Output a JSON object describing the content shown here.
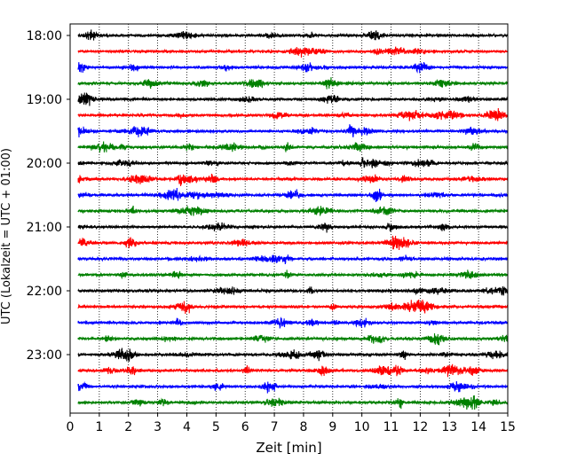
{
  "chart_data": {
    "type": "line",
    "title": "",
    "xlabel": "Zeit  [min]",
    "ylabel": "UTC (Lokalzeit = UTC + 01:00)",
    "xlim": [
      0,
      15
    ],
    "x_ticks": [
      0,
      1,
      2,
      3,
      4,
      5,
      6,
      7,
      8,
      9,
      10,
      11,
      12,
      13,
      14,
      15
    ],
    "x_tick_labels": [
      "0",
      "1",
      "2",
      "3",
      "4",
      "5",
      "6",
      "7",
      "8",
      "9",
      "10",
      "11",
      "12",
      "13",
      "14",
      "15"
    ],
    "y_tick_labels": [
      "18:00",
      "19:00",
      "20:00",
      "21:00",
      "22:00",
      "23:00"
    ],
    "grid": "vertical dotted",
    "legend": "none",
    "color_cycle": [
      "#000000",
      "#ff0000",
      "#0000ff",
      "#008000"
    ],
    "series": [
      {
        "start": "18:00",
        "color": "#000000"
      },
      {
        "start": "18:15",
        "color": "#ff0000"
      },
      {
        "start": "18:30",
        "color": "#0000ff"
      },
      {
        "start": "18:45",
        "color": "#008000"
      },
      {
        "start": "19:00",
        "color": "#000000"
      },
      {
        "start": "19:15",
        "color": "#ff0000"
      },
      {
        "start": "19:30",
        "color": "#0000ff"
      },
      {
        "start": "19:45",
        "color": "#008000"
      },
      {
        "start": "20:00",
        "color": "#000000"
      },
      {
        "start": "20:15",
        "color": "#ff0000"
      },
      {
        "start": "20:30",
        "color": "#0000ff"
      },
      {
        "start": "20:45",
        "color": "#008000"
      },
      {
        "start": "21:00",
        "color": "#000000"
      },
      {
        "start": "21:15",
        "color": "#ff0000"
      },
      {
        "start": "21:30",
        "color": "#0000ff"
      },
      {
        "start": "21:45",
        "color": "#008000"
      },
      {
        "start": "22:00",
        "color": "#000000"
      },
      {
        "start": "22:15",
        "color": "#ff0000"
      },
      {
        "start": "22:30",
        "color": "#0000ff"
      },
      {
        "start": "22:45",
        "color": "#008000"
      },
      {
        "start": "23:00",
        "color": "#000000"
      },
      {
        "start": "23:15",
        "color": "#ff0000"
      },
      {
        "start": "23:30",
        "color": "#0000ff"
      },
      {
        "start": "23:45",
        "color": "#008000"
      }
    ]
  }
}
